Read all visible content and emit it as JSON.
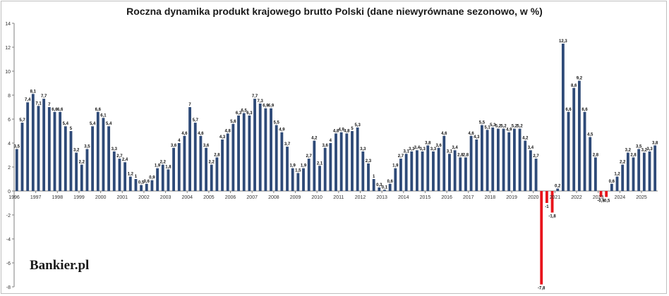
{
  "chart_data": {
    "type": "bar",
    "title": "Roczna dynamika produkt krajowego brutto Polski (dane niewyrównane sezonowo, w %)",
    "xlabel": "",
    "ylabel": "",
    "ylim": [
      -8,
      14
    ],
    "yticks": [
      14,
      12,
      10,
      8,
      6,
      4,
      2,
      0,
      -2,
      -4,
      -6,
      -8
    ],
    "years": [
      "1996",
      "1997",
      "1998",
      "1999",
      "2000",
      "2001",
      "2002",
      "2003",
      "2004",
      "2005",
      "2006",
      "2007",
      "2008",
      "2009",
      "2010",
      "2011",
      "2012",
      "2013",
      "2014",
      "2015",
      "2016",
      "2017",
      "2018",
      "2019",
      "2020",
      "2021",
      "2022",
      "2023",
      "2024",
      "2025"
    ],
    "labels": [
      "3,5",
      "5,7",
      "7,4",
      "8,1",
      "7,1",
      "7,7",
      "7",
      "6,6",
      "6,6",
      "5,4",
      "5",
      "3,2",
      "2,2",
      "3,5",
      "5,4",
      "6,6",
      "6,1",
      "5,4",
      "3,3",
      "2,7",
      "2,4",
      "1,2",
      "1",
      "0,5",
      "0,6",
      "0,9",
      "1,9",
      "2,2",
      "1,8",
      "3,6",
      "4",
      "4,6",
      "7",
      "5,7",
      "4,6",
      "3,6",
      "2,2",
      "2,8",
      "4,3",
      "4,8",
      "5,6",
      "6,3",
      "6,5",
      "6,3",
      "7,7",
      "7,3",
      "6,9",
      "6,9",
      "5,5",
      "4,9",
      "3,7",
      "1,9",
      "1,5",
      "1,9",
      "2,7",
      "4,2",
      "2,1",
      "3,6",
      "4",
      "4,8",
      "4,9",
      "4,8",
      "5",
      "5,3",
      "3,3",
      "2,3",
      "1",
      "0,3",
      "0,1",
      "0,6",
      "1,9",
      "2,7",
      "3,1",
      "3,3",
      "3,4",
      "3,3",
      "3,8",
      "3,3",
      "3,6",
      "4,6",
      "3,1",
      "3,4",
      "2,8",
      "2,8",
      "4,6",
      "4,3",
      "5,5",
      "5,1",
      "5,3",
      "5,2",
      "5,2",
      "4,9",
      "5,2",
      "5,2",
      "4,2",
      "3,4",
      "2,7",
      "-7,8",
      "-1",
      "-1,8",
      "0,2",
      "12,3",
      "6,6",
      "8,6",
      "9,2",
      "6,6",
      "4,5",
      "2,8",
      "-0,5",
      "-0,5",
      "0,6",
      "1,2",
      "2,2",
      "3,2",
      "2,8",
      "3,5",
      "3,2",
      "3,3",
      "3,8"
    ],
    "values": [
      3.5,
      5.7,
      7.4,
      8.1,
      7.1,
      7.7,
      7,
      6.6,
      6.6,
      5.4,
      5,
      3.2,
      2.2,
      3.5,
      5.4,
      6.6,
      6.1,
      5.4,
      3.3,
      2.7,
      2.4,
      1.2,
      1,
      0.5,
      0.6,
      0.9,
      1.9,
      2.2,
      1.8,
      3.6,
      4,
      4.6,
      7,
      5.7,
      4.6,
      3.6,
      2.2,
      2.8,
      4.3,
      4.8,
      5.6,
      6.3,
      6.5,
      6.3,
      7.7,
      7.3,
      6.9,
      6.9,
      5.5,
      4.9,
      3.7,
      1.9,
      1.5,
      1.9,
      2.7,
      4.2,
      2.1,
      3.6,
      4,
      4.8,
      4.9,
      4.8,
      5,
      5.3,
      3.3,
      2.3,
      1,
      0.3,
      0.1,
      0.6,
      1.9,
      2.7,
      3.1,
      3.3,
      3.4,
      3.3,
      3.8,
      3.3,
      3.6,
      4.6,
      3.1,
      3.4,
      2.8,
      2.8,
      4.6,
      4.3,
      5.5,
      5.1,
      5.3,
      5.2,
      5.2,
      4.9,
      5.2,
      5.2,
      4.2,
      3.4,
      2.7,
      -7.8,
      -1,
      -1.8,
      0.2,
      12.3,
      6.6,
      8.6,
      9.2,
      6.6,
      4.5,
      2.8,
      -0.5,
      -0.5,
      0.6,
      1.2,
      2.2,
      3.2,
      2.8,
      3.5,
      3.2,
      3.3,
      3.8
    ],
    "positive_color": "#2e4a78",
    "negative_color": "#e8141b",
    "grid": false
  },
  "brand": {
    "logo_text": "Bankier.pl"
  }
}
